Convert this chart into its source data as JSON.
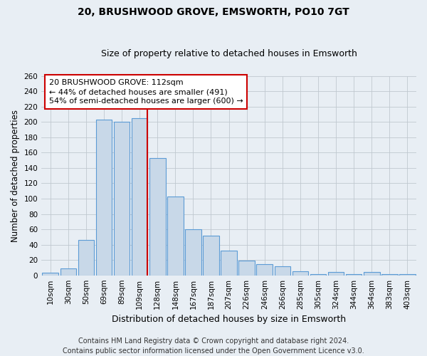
{
  "title": "20, BRUSHWOOD GROVE, EMSWORTH, PO10 7GT",
  "subtitle": "Size of property relative to detached houses in Emsworth",
  "xlabel": "Distribution of detached houses by size in Emsworth",
  "ylabel": "Number of detached properties",
  "bar_labels": [
    "10sqm",
    "30sqm",
    "50sqm",
    "69sqm",
    "89sqm",
    "109sqm",
    "128sqm",
    "148sqm",
    "167sqm",
    "187sqm",
    "207sqm",
    "226sqm",
    "246sqm",
    "266sqm",
    "285sqm",
    "305sqm",
    "324sqm",
    "344sqm",
    "364sqm",
    "383sqm",
    "403sqm"
  ],
  "bar_values": [
    3,
    9,
    46,
    203,
    200,
    205,
    153,
    103,
    60,
    52,
    32,
    19,
    15,
    12,
    5,
    2,
    4,
    2,
    4,
    2,
    2
  ],
  "bar_color": "#c8d8e8",
  "bar_edge_color": "#5b9bd5",
  "highlight_line_bar_index": 5,
  "highlight_line_color": "#cc0000",
  "annotation_line1": "20 BRUSHWOOD GROVE: 112sqm",
  "annotation_line2": "← 44% of detached houses are smaller (491)",
  "annotation_line3": "54% of semi-detached houses are larger (600) →",
  "annotation_box_color": "#ffffff",
  "annotation_box_edge": "#cc0000",
  "ylim": [
    0,
    260
  ],
  "yticks": [
    0,
    20,
    40,
    60,
    80,
    100,
    120,
    140,
    160,
    180,
    200,
    220,
    240,
    260
  ],
  "footer_line1": "Contains HM Land Registry data © Crown copyright and database right 2024.",
  "footer_line2": "Contains public sector information licensed under the Open Government Licence v3.0.",
  "background_color": "#e8eef4",
  "plot_bg_color": "#e8eef4",
  "title_fontsize": 10,
  "subtitle_fontsize": 9,
  "xlabel_fontsize": 9,
  "ylabel_fontsize": 8.5,
  "tick_fontsize": 7.5,
  "annotation_fontsize": 8,
  "footer_fontsize": 7
}
